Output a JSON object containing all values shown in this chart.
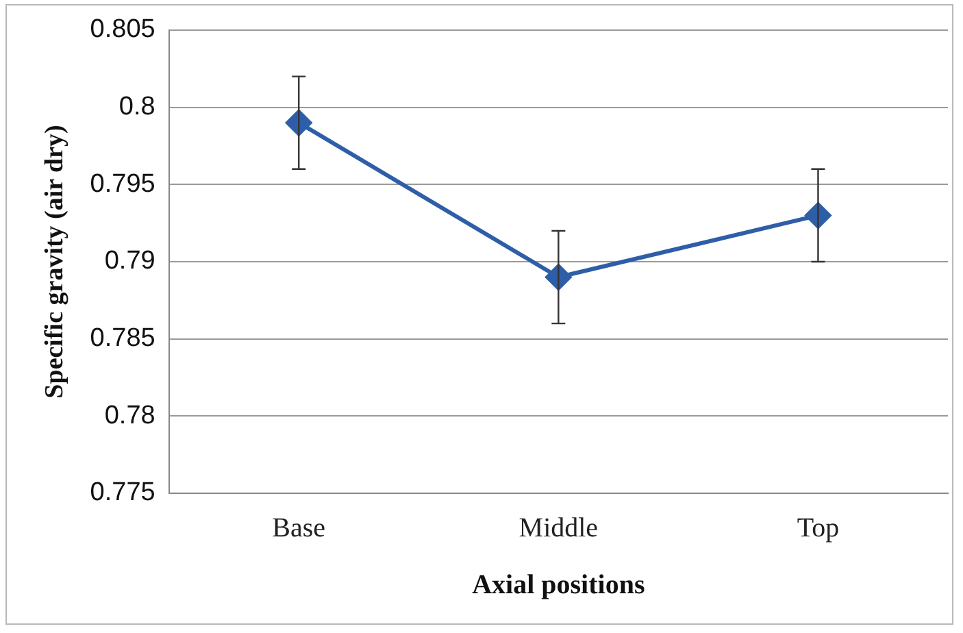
{
  "chart_data": {
    "type": "line",
    "xlabel": "Axial positions",
    "ylabel": "Specific gravity (air dry)",
    "categories": [
      "Base",
      "Middle",
      "Top"
    ],
    "series": [
      {
        "color": "#2f5ea8",
        "values": [
          0.799,
          0.789,
          0.793
        ],
        "errors": [
          [
            0.796,
            0.802
          ],
          [
            0.786,
            0.792
          ],
          [
            0.79,
            0.796
          ]
        ]
      }
    ],
    "ylim": [
      0.775,
      0.805
    ],
    "yticks": [
      {
        "value": 0.775,
        "label": "0.775"
      },
      {
        "value": 0.78,
        "label": "0.78"
      },
      {
        "value": 0.785,
        "label": "0.785"
      },
      {
        "value": 0.79,
        "label": "0.79"
      },
      {
        "value": 0.795,
        "label": "0.795"
      },
      {
        "value": 0.8,
        "label": "0.8"
      },
      {
        "value": 0.805,
        "label": "0.805"
      }
    ],
    "grid": "y",
    "legend": false,
    "marker": "diamond",
    "line_style": "solid"
  }
}
